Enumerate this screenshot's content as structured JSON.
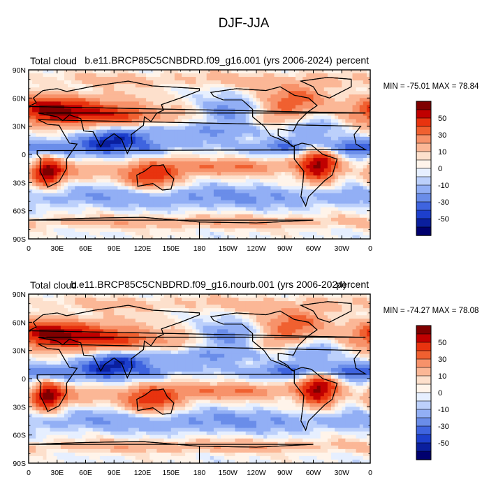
{
  "figure_title": "DJF-JJA",
  "colors": {
    "land_outline": "#000000",
    "frame": "#000000"
  },
  "chart_data": [
    {
      "type": "heatmap",
      "variable": "Total cloud",
      "units": "percent",
      "title": "b.e11.BRCP85C5CNBDRD.f09_g16.001 (yrs 2006-2024)",
      "minmax_text": "MIN = -75.01  MAX =  78.84",
      "min": -75.01,
      "max": 78.84,
      "x_ticks": [
        "0",
        "30E",
        "60E",
        "90E",
        "120E",
        "150E",
        "180",
        "150W",
        "120W",
        "90W",
        "60W",
        "30W",
        "0"
      ],
      "y_ticks": [
        "90N",
        "60N",
        "30N",
        "0",
        "30S",
        "60S",
        "90S"
      ],
      "xlim": [
        0,
        360
      ],
      "ylim": [
        -90,
        90
      ],
      "colorbar_levels": [
        -60,
        -50,
        -40,
        -30,
        -20,
        -10,
        -5,
        0,
        5,
        10,
        20,
        30,
        40,
        50,
        60
      ],
      "colorbar_labels": [
        "50",
        "30",
        "10",
        "0",
        "-10",
        "-30",
        "-50"
      ],
      "colorbar_colors": [
        "#7f0000",
        "#c00000",
        "#e8330f",
        "#f06030",
        "#f7926a",
        "#fbb796",
        "#fde0cc",
        "#fff4ea",
        "#e6efff",
        "#bcd0fb",
        "#92aff5",
        "#6a8de9",
        "#3f64df",
        "#1d3fcc",
        "#0a1f9e",
        "#00006e"
      ]
    },
    {
      "type": "heatmap",
      "variable": "Total cloud",
      "units": "percent",
      "title": "b.e11.BRCP85C5CNBDRD.f09_g16.nourb.001 (yrs 2006-2024)",
      "minmax_text": "MIN = -74.27  MAX =  78.08",
      "min": -74.27,
      "max": 78.08,
      "x_ticks": [
        "0",
        "30E",
        "60E",
        "90E",
        "120E",
        "150E",
        "180",
        "150W",
        "120W",
        "90W",
        "60W",
        "30W",
        "0"
      ],
      "y_ticks": [
        "90N",
        "60N",
        "30N",
        "0",
        "30S",
        "60S",
        "90S"
      ],
      "xlim": [
        0,
        360
      ],
      "ylim": [
        -90,
        90
      ],
      "colorbar_levels": [
        -60,
        -50,
        -40,
        -30,
        -20,
        -10,
        -5,
        0,
        5,
        10,
        20,
        30,
        40,
        50,
        60
      ],
      "colorbar_labels": [
        "50",
        "30",
        "10",
        "0",
        "-10",
        "-30",
        "-50"
      ],
      "colorbar_colors": [
        "#7f0000",
        "#c00000",
        "#e8330f",
        "#f06030",
        "#f7926a",
        "#fbb796",
        "#fde0cc",
        "#fff4ea",
        "#e6efff",
        "#bcd0fb",
        "#92aff5",
        "#6a8de9",
        "#3f64df",
        "#1d3fcc",
        "#0a1f9e",
        "#00006e"
      ]
    }
  ]
}
